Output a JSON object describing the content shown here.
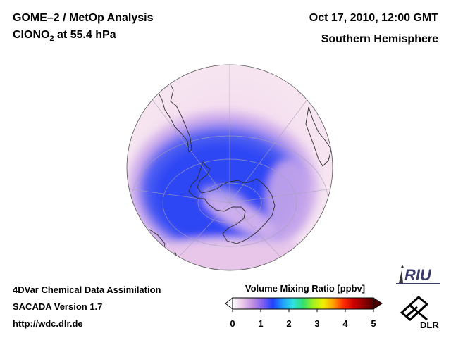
{
  "header": {
    "title_line1": "GOME–2 / MetOp Analysis",
    "species": "ClONO",
    "species_sub": "2",
    "level": " at 55.4 hPa",
    "date": "Oct 17, 2010, 12:00 GMT",
    "region": "Southern Hemisphere"
  },
  "footer": {
    "method": "4DVar Chemical Data Assimilation",
    "version": "SACADA Version 1.7",
    "url": "http://wdc.dlr.de"
  },
  "colorbar": {
    "title": "Volume Mixing Ratio [ppbv]",
    "ticks": [
      "0",
      "1",
      "2",
      "3",
      "4",
      "5"
    ],
    "colors": [
      "#ffffff",
      "#e8c8e8",
      "#c090e0",
      "#8060f0",
      "#2040ff",
      "#20a0ff",
      "#30e0e0",
      "#30e070",
      "#a0f020",
      "#f0f000",
      "#ffa000",
      "#ff3000",
      "#d00000",
      "#900000",
      "#500000"
    ]
  },
  "logos": {
    "riu": "RIU",
    "dlr": "DLR"
  },
  "map": {
    "projection": "orthographic-south-pole",
    "land_outline_color": "#333333",
    "background_color": "#f5e6f0",
    "low_value_color": "#3a52f0"
  }
}
